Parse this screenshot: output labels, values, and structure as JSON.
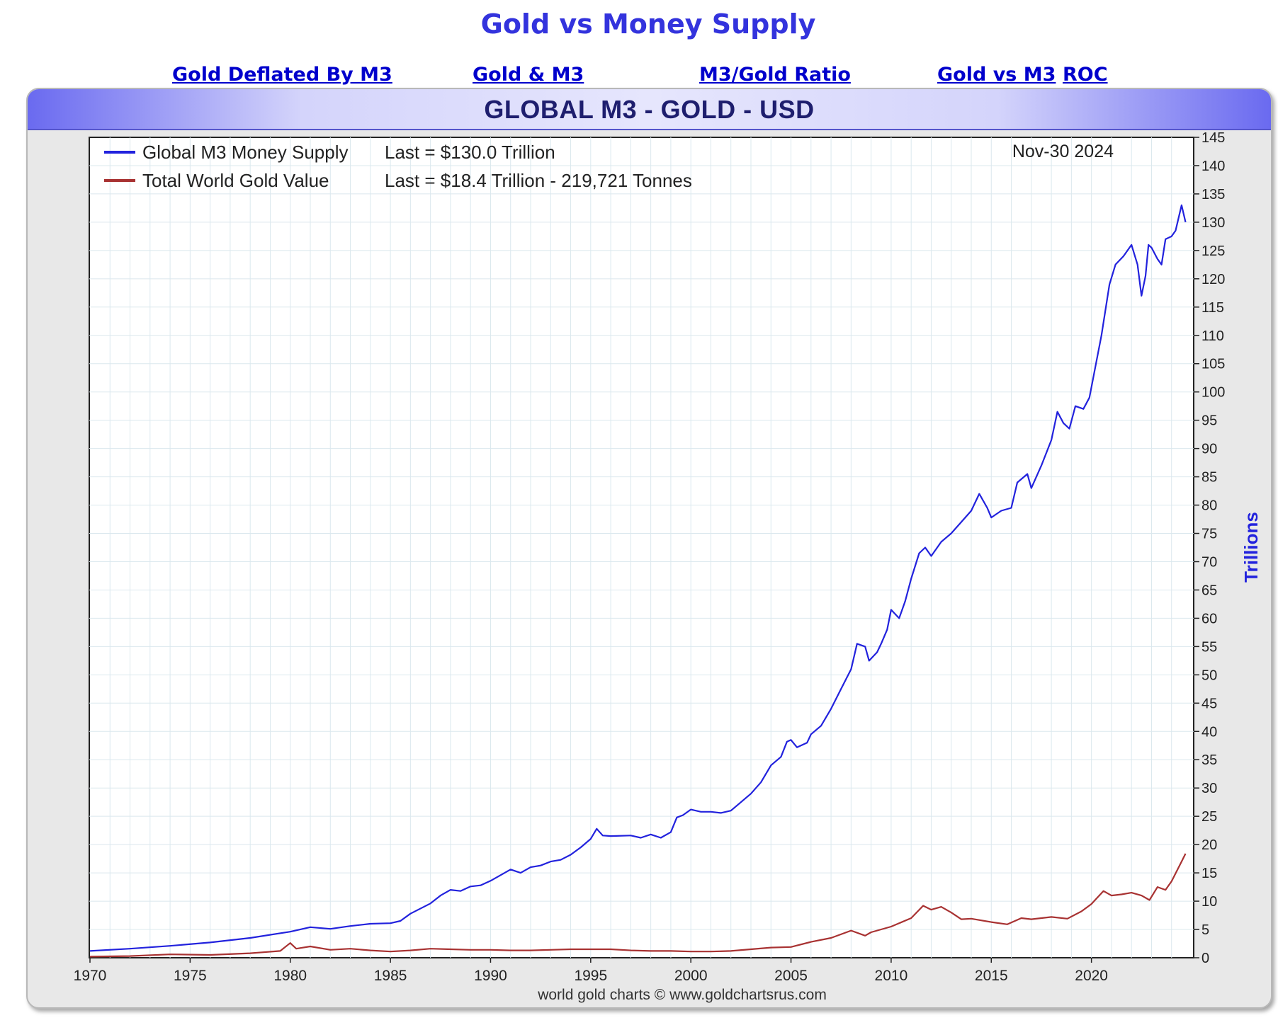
{
  "page_title": "Gold vs Money Supply",
  "nav": {
    "links": [
      {
        "label": "Gold Deflated By M3"
      },
      {
        "label": "Gold & M3"
      },
      {
        "label": "M3/Gold Ratio"
      },
      {
        "label": "Gold vs M3"
      },
      {
        "label": "ROC"
      }
    ]
  },
  "chart_data": {
    "type": "line",
    "title": "GLOBAL M3 - GOLD - USD",
    "ylabel": "Trillions",
    "xlabel": "",
    "date_label": "Nov-30  2024",
    "credit": "world gold charts © www.goldchartsrus.com",
    "xlim": [
      1970,
      2025
    ],
    "ylim": [
      0,
      145
    ],
    "x_ticks": [
      1970,
      1975,
      1980,
      1985,
      1990,
      1995,
      2000,
      2005,
      2010,
      2015,
      2020
    ],
    "y_ticks": [
      0,
      5,
      10,
      15,
      20,
      25,
      30,
      35,
      40,
      45,
      50,
      55,
      60,
      65,
      70,
      75,
      80,
      85,
      90,
      95,
      100,
      105,
      110,
      115,
      120,
      125,
      130,
      135,
      140,
      145
    ],
    "grid": true,
    "legend_position": "top-left",
    "series": [
      {
        "name": "Global M3 Money Supply",
        "last_label": "Last = $130.0 Trillion",
        "color": "#2222dd",
        "points": [
          [
            1970,
            1.2
          ],
          [
            1972,
            1.6
          ],
          [
            1974,
            2.1
          ],
          [
            1976,
            2.7
          ],
          [
            1978,
            3.5
          ],
          [
            1980,
            4.6
          ],
          [
            1981,
            5.4
          ],
          [
            1982,
            5.1
          ],
          [
            1983,
            5.6
          ],
          [
            1984,
            6.0
          ],
          [
            1985,
            6.1
          ],
          [
            1985.5,
            6.5
          ],
          [
            1986,
            7.8
          ],
          [
            1987,
            9.6
          ],
          [
            1987.5,
            11.0
          ],
          [
            1988,
            12.0
          ],
          [
            1988.5,
            11.8
          ],
          [
            1989,
            12.6
          ],
          [
            1989.5,
            12.8
          ],
          [
            1990,
            13.6
          ],
          [
            1990.5,
            14.6
          ],
          [
            1991,
            15.6
          ],
          [
            1991.5,
            15.0
          ],
          [
            1992,
            16.0
          ],
          [
            1992.5,
            16.3
          ],
          [
            1993,
            17.0
          ],
          [
            1993.5,
            17.3
          ],
          [
            1994,
            18.2
          ],
          [
            1994.5,
            19.5
          ],
          [
            1995,
            21.0
          ],
          [
            1995.3,
            22.8
          ],
          [
            1995.6,
            21.6
          ],
          [
            1996,
            21.5
          ],
          [
            1997,
            21.6
          ],
          [
            1997.5,
            21.2
          ],
          [
            1998,
            21.8
          ],
          [
            1998.5,
            21.2
          ],
          [
            1999,
            22.2
          ],
          [
            1999.3,
            24.8
          ],
          [
            1999.6,
            25.2
          ],
          [
            2000,
            26.2
          ],
          [
            2000.5,
            25.8
          ],
          [
            2001,
            25.8
          ],
          [
            2001.5,
            25.6
          ],
          [
            2002,
            26.0
          ],
          [
            2002.5,
            27.5
          ],
          [
            2003,
            29.0
          ],
          [
            2003.5,
            31.0
          ],
          [
            2004,
            34.0
          ],
          [
            2004.5,
            35.5
          ],
          [
            2004.8,
            38.2
          ],
          [
            2005,
            38.5
          ],
          [
            2005.3,
            37.2
          ],
          [
            2005.8,
            38.0
          ],
          [
            2006,
            39.5
          ],
          [
            2006.5,
            41.0
          ],
          [
            2007,
            44.0
          ],
          [
            2007.5,
            47.5
          ],
          [
            2008,
            51.0
          ],
          [
            2008.3,
            55.5
          ],
          [
            2008.7,
            55.0
          ],
          [
            2008.9,
            52.5
          ],
          [
            2009.3,
            54.0
          ],
          [
            2009.5,
            55.5
          ],
          [
            2009.8,
            58.0
          ],
          [
            2010,
            61.5
          ],
          [
            2010.4,
            60.0
          ],
          [
            2010.7,
            63.0
          ],
          [
            2011,
            67.0
          ],
          [
            2011.4,
            71.5
          ],
          [
            2011.7,
            72.5
          ],
          [
            2012,
            71.0
          ],
          [
            2012.5,
            73.5
          ],
          [
            2013,
            75.0
          ],
          [
            2013.5,
            77.0
          ],
          [
            2014,
            79.0
          ],
          [
            2014.4,
            82.0
          ],
          [
            2014.8,
            79.5
          ],
          [
            2015,
            77.8
          ],
          [
            2015.5,
            79.0
          ],
          [
            2016,
            79.5
          ],
          [
            2016.3,
            84.0
          ],
          [
            2016.8,
            85.5
          ],
          [
            2017,
            83.0
          ],
          [
            2017.5,
            87.0
          ],
          [
            2018,
            91.5
          ],
          [
            2018.3,
            96.5
          ],
          [
            2018.6,
            94.5
          ],
          [
            2018.9,
            93.5
          ],
          [
            2019.2,
            97.5
          ],
          [
            2019.6,
            97.0
          ],
          [
            2019.9,
            99.0
          ],
          [
            2020.2,
            104.5
          ],
          [
            2020.5,
            110.0
          ],
          [
            2020.9,
            119.0
          ],
          [
            2021.2,
            122.5
          ],
          [
            2021.6,
            124.0
          ],
          [
            2022,
            126.0
          ],
          [
            2022.3,
            122.5
          ],
          [
            2022.5,
            117.0
          ],
          [
            2022.7,
            120.5
          ],
          [
            2022.85,
            126.0
          ],
          [
            2023,
            125.5
          ],
          [
            2023.3,
            123.5
          ],
          [
            2023.5,
            122.5
          ],
          [
            2023.7,
            127.0
          ],
          [
            2024,
            127.5
          ],
          [
            2024.2,
            128.5
          ],
          [
            2024.5,
            133.0
          ],
          [
            2024.7,
            130.0
          ]
        ]
      },
      {
        "name": "Total World Gold Value",
        "last_label": "Last = $18.4 Trillion - 219,721 Tonnes",
        "color": "#a83232",
        "points": [
          [
            1970,
            0.2
          ],
          [
            1972,
            0.3
          ],
          [
            1974,
            0.6
          ],
          [
            1976,
            0.5
          ],
          [
            1978,
            0.8
          ],
          [
            1979.5,
            1.2
          ],
          [
            1980,
            2.6
          ],
          [
            1980.3,
            1.6
          ],
          [
            1981,
            2.0
          ],
          [
            1982,
            1.4
          ],
          [
            1983,
            1.6
          ],
          [
            1984,
            1.3
          ],
          [
            1985,
            1.1
          ],
          [
            1986,
            1.3
          ],
          [
            1987,
            1.6
          ],
          [
            1988,
            1.5
          ],
          [
            1989,
            1.4
          ],
          [
            1990,
            1.4
          ],
          [
            1991,
            1.3
          ],
          [
            1992,
            1.3
          ],
          [
            1993,
            1.4
          ],
          [
            1994,
            1.5
          ],
          [
            1995,
            1.5
          ],
          [
            1996,
            1.5
          ],
          [
            1997,
            1.3
          ],
          [
            1998,
            1.2
          ],
          [
            1999,
            1.2
          ],
          [
            2000,
            1.1
          ],
          [
            2001,
            1.1
          ],
          [
            2002,
            1.2
          ],
          [
            2003,
            1.5
          ],
          [
            2004,
            1.8
          ],
          [
            2005,
            1.9
          ],
          [
            2006,
            2.8
          ],
          [
            2007,
            3.5
          ],
          [
            2008,
            4.8
          ],
          [
            2008.7,
            3.9
          ],
          [
            2009,
            4.5
          ],
          [
            2010,
            5.5
          ],
          [
            2011,
            7.0
          ],
          [
            2011.6,
            9.2
          ],
          [
            2012,
            8.5
          ],
          [
            2012.5,
            9.0
          ],
          [
            2013,
            8.0
          ],
          [
            2013.5,
            6.8
          ],
          [
            2014,
            6.9
          ],
          [
            2015,
            6.3
          ],
          [
            2015.8,
            5.9
          ],
          [
            2016.5,
            7.0
          ],
          [
            2017,
            6.8
          ],
          [
            2018,
            7.2
          ],
          [
            2018.8,
            6.9
          ],
          [
            2019.5,
            8.2
          ],
          [
            2020,
            9.5
          ],
          [
            2020.6,
            11.8
          ],
          [
            2021,
            11.0
          ],
          [
            2021.5,
            11.2
          ],
          [
            2022,
            11.5
          ],
          [
            2022.5,
            11.0
          ],
          [
            2022.9,
            10.2
          ],
          [
            2023.3,
            12.5
          ],
          [
            2023.7,
            12.0
          ],
          [
            2024,
            13.5
          ],
          [
            2024.5,
            17.0
          ],
          [
            2024.7,
            18.4
          ]
        ]
      }
    ]
  }
}
